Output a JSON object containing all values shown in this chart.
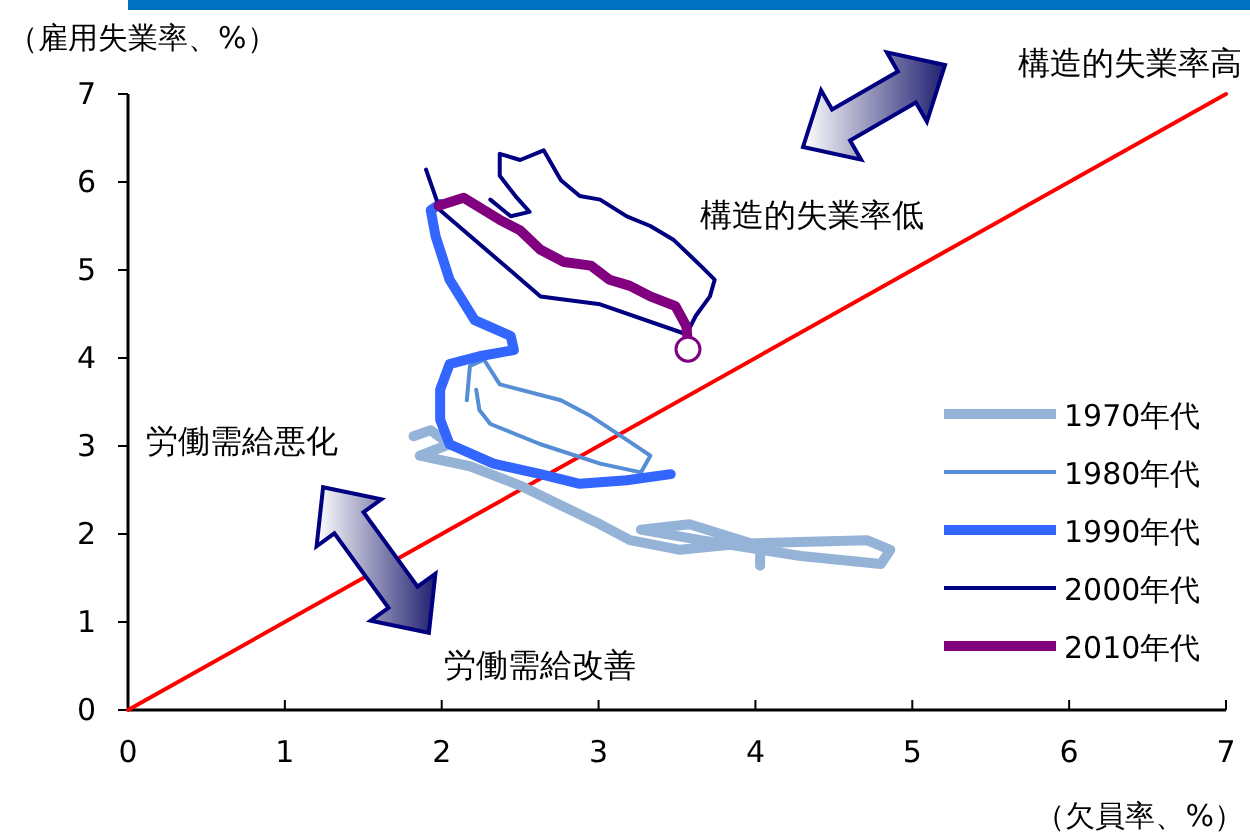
{
  "chart_data": {
    "type": "line",
    "xlabel": "（欠員率、%）",
    "ylabel": "（雇用失業率、%）",
    "xlim": [
      0,
      7
    ],
    "ylim": [
      0,
      7
    ],
    "xticks": [
      0,
      1,
      2,
      3,
      4,
      5,
      6,
      7
    ],
    "yticks": [
      0,
      1,
      2,
      3,
      4,
      5,
      6,
      7
    ],
    "grid": false,
    "legend": "right",
    "line_style": "solid",
    "annotations": [
      "構造的失業率高",
      "構造的失業率低",
      "労働需給悪化",
      "労働需給改善"
    ],
    "series": [
      {
        "color": "#ff0000",
        "x": [
          0,
          7
        ],
        "values": [
          0,
          7
        ]
      },
      {
        "name": "1970年代",
        "color": "#95b3d7",
        "x": [
          1.82,
          1.93,
          2.05,
          1.86,
          2.18,
          2.5,
          3.01,
          3.2,
          3.52,
          3.9,
          4.71,
          4.86,
          4.8,
          4.29,
          3.65,
          3.27,
          3.58,
          4.03,
          4.03
        ],
        "values": [
          3.11,
          3.18,
          3.02,
          2.89,
          2.77,
          2.55,
          2.11,
          1.93,
          1.82,
          1.89,
          1.93,
          1.82,
          1.66,
          1.75,
          1.93,
          2.05,
          2.11,
          1.86,
          1.64
        ]
      },
      {
        "name": "1980年代",
        "color": "#558ed5",
        "x": [
          2.16,
          2.18,
          2.27,
          2.37,
          2.76,
          2.95,
          3.18,
          3.33,
          3.27,
          3.01,
          2.63,
          2.31,
          2.24,
          2.22
        ],
        "values": [
          3.52,
          3.91,
          3.98,
          3.7,
          3.52,
          3.34,
          3.07,
          2.89,
          2.7,
          2.8,
          3.02,
          3.25,
          3.41,
          3.64
        ]
      },
      {
        "name": "1990年代",
        "color": "#3366ff",
        "x": [
          3.46,
          3.18,
          2.88,
          2.63,
          2.33,
          2.05,
          1.99,
          1.99,
          2.05,
          2.24,
          2.46,
          2.44,
          2.21,
          2.05,
          1.96,
          1.93,
          1.99
        ],
        "values": [
          2.68,
          2.61,
          2.57,
          2.68,
          2.8,
          3.02,
          3.3,
          3.64,
          3.93,
          4.02,
          4.09,
          4.25,
          4.43,
          4.89,
          5.39,
          5.68,
          5.75
        ]
      },
      {
        "name": "2000年代",
        "color": "#000080",
        "x": [
          2.31,
          2.44,
          2.56,
          2.47,
          2.37,
          2.37,
          2.5,
          2.65,
          2.76,
          2.88,
          3.01,
          3.18,
          3.33,
          3.48,
          3.65,
          3.74,
          3.71,
          3.62,
          3.56,
          3.01,
          2.63,
          1.99,
          1.9
        ],
        "values": [
          5.8,
          5.61,
          5.66,
          5.84,
          6.07,
          6.32,
          6.25,
          6.36,
          6.02,
          5.84,
          5.8,
          5.61,
          5.5,
          5.34,
          5.05,
          4.89,
          4.7,
          4.48,
          4.27,
          4.61,
          4.7,
          5.68,
          6.14
        ]
      },
      {
        "name": "2010年代",
        "color": "#800080",
        "x": [
          1.98,
          2.14,
          2.37,
          2.5,
          2.63,
          2.78,
          2.95,
          3.07,
          3.2,
          3.33,
          3.49,
          3.56,
          3.57
        ],
        "values": [
          5.73,
          5.82,
          5.57,
          5.45,
          5.23,
          5.09,
          5.05,
          4.89,
          4.82,
          4.7,
          4.59,
          4.36,
          4.16
        ]
      },
      {
        "type": "scatter",
        "marker": "circle",
        "color": "#800080",
        "x": [
          3.57
        ],
        "values": [
          4.1
        ]
      }
    ]
  }
}
